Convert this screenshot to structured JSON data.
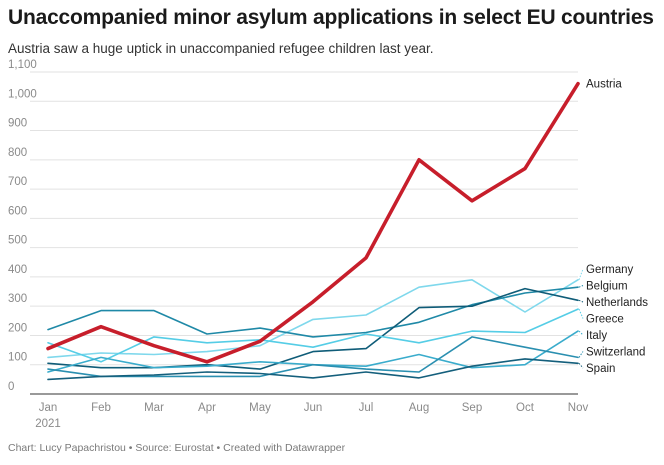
{
  "header": {
    "title": "Unaccompanied minor asylum applications in select EU countries",
    "subtitle": "Austria saw a huge uptick in unaccompanied refugee children last year."
  },
  "footer": {
    "credit": "Chart: Lucy Papachristou • Source: Eurostat • Created with Datawrapper"
  },
  "chart_data": {
    "type": "line",
    "title": "Unaccompanied minor asylum applications in select EU countries",
    "subtitle": "Austria saw a huge uptick in unaccompanied refugee children last year.",
    "xlabel": "",
    "ylabel": "",
    "categories": [
      "Jan",
      "Feb",
      "Mar",
      "Apr",
      "May",
      "Jun",
      "Jul",
      "Aug",
      "Sep",
      "Oct",
      "Nov"
    ],
    "x_year_label": "2021",
    "ylim": [
      0,
      1100
    ],
    "yticks": [
      0,
      100,
      200,
      300,
      400,
      500,
      600,
      700,
      800,
      900,
      1000,
      1100
    ],
    "ytick_labels": [
      "0",
      "100",
      "200",
      "300",
      "400",
      "500",
      "600",
      "700",
      "800",
      "900",
      "1,000",
      "1,100"
    ],
    "grid": "horizontal",
    "legend": "direct labels at right",
    "series": [
      {
        "name": "Germany",
        "color": "#7fd8ec",
        "values": [
          125,
          140,
          135,
          145,
          165,
          255,
          270,
          365,
          390,
          280,
          390
        ]
      },
      {
        "name": "Belgium",
        "color": "#1f89a7",
        "values": [
          220,
          285,
          285,
          205,
          225,
          195,
          210,
          245,
          305,
          345,
          365
        ]
      },
      {
        "name": "Netherlands",
        "color": "#0f5c78",
        "values": [
          105,
          90,
          90,
          100,
          85,
          145,
          155,
          295,
          300,
          360,
          320
        ]
      },
      {
        "name": "Greece",
        "color": "#55cde6",
        "values": [
          175,
          110,
          195,
          175,
          185,
          160,
          205,
          175,
          215,
          210,
          290
        ]
      },
      {
        "name": "Italy",
        "color": "#3aaccc",
        "values": [
          75,
          125,
          90,
          95,
          110,
          100,
          95,
          135,
          90,
          100,
          215
        ]
      },
      {
        "name": "Switzerland",
        "color": "#2a8fb0",
        "values": [
          85,
          60,
          60,
          60,
          60,
          100,
          85,
          75,
          195,
          160,
          125
        ]
      },
      {
        "name": "Spain",
        "color": "#145f7c",
        "values": [
          50,
          60,
          65,
          75,
          70,
          55,
          75,
          55,
          95,
          120,
          105
        ]
      },
      {
        "name": "Austria",
        "color": "#c71e2b",
        "emphasis": true,
        "values": [
          155,
          230,
          165,
          110,
          180,
          315,
          465,
          800,
          660,
          770,
          1060
        ]
      }
    ]
  }
}
